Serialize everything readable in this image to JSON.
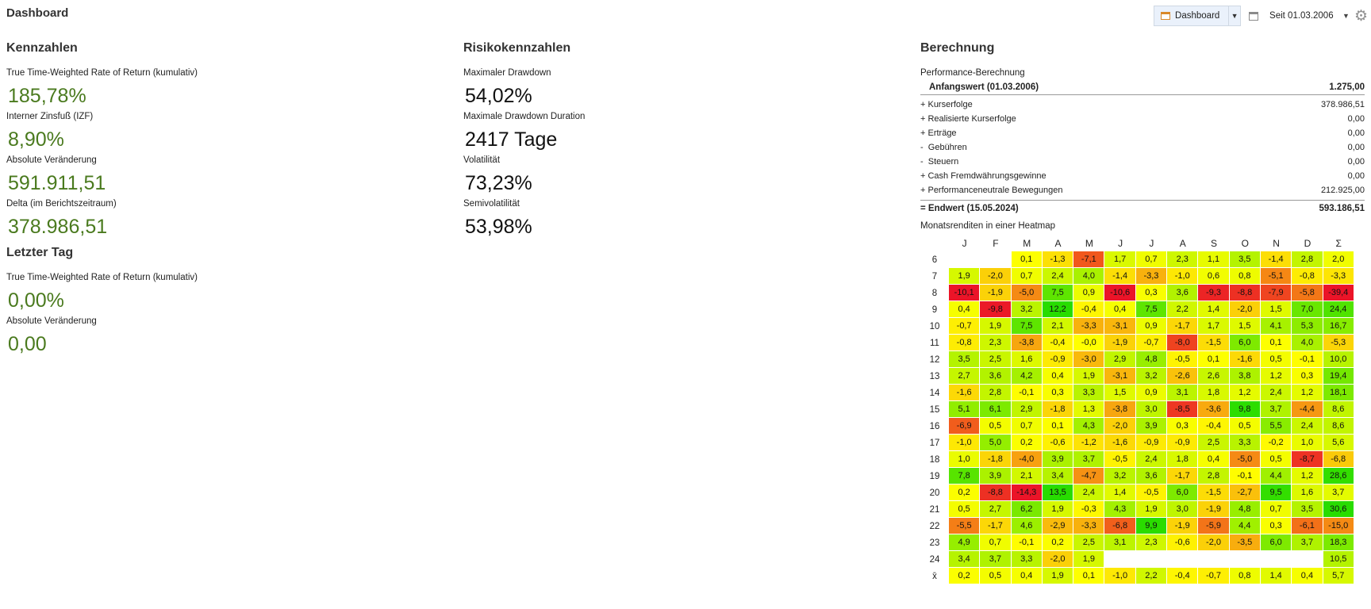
{
  "page_title": "Dashboard",
  "toolbar": {
    "dashboard_label": "Dashboard",
    "since_label": "Seit 01.03.2006"
  },
  "kennzahlen": {
    "title": "Kennzahlen",
    "items": [
      {
        "label": "True Time-Weighted Rate of Return (kumulativ)",
        "value": "185,78%"
      },
      {
        "label": "Interner Zinsfuß (IZF)",
        "value": "8,90%"
      },
      {
        "label": "Absolute Veränderung",
        "value": "591.911,51"
      },
      {
        "label": "Delta (im Berichtszeitraum)",
        "value": "378.986,51"
      }
    ]
  },
  "letzter_tag": {
    "title": "Letzter Tag",
    "items": [
      {
        "label": "True Time-Weighted Rate of Return (kumulativ)",
        "value": "0,00%"
      },
      {
        "label": "Absolute Veränderung",
        "value": "0,00"
      }
    ]
  },
  "risiko": {
    "title": "Risikokennzahlen",
    "items": [
      {
        "label": "Maximaler Drawdown",
        "value": "54,02%"
      },
      {
        "label": "Maximale Drawdown Duration",
        "value": "2417 Tage"
      },
      {
        "label": "Volatilität",
        "value": "73,23%"
      },
      {
        "label": "Semivolatilität",
        "value": "53,98%"
      }
    ]
  },
  "berechnung": {
    "title": "Berechnung",
    "subtitle": "Performance-Berechnung",
    "start": {
      "label": "Anfangswert (01.03.2006)",
      "value": "1.275,00"
    },
    "rows": [
      {
        "label": "+ Kurserfolge",
        "value": "378.986,51"
      },
      {
        "label": "+ Realisierte Kurserfolge",
        "value": "0,00"
      },
      {
        "label": "+ Erträge",
        "value": "0,00"
      },
      {
        "label": "-  Gebühren",
        "value": "0,00"
      },
      {
        "label": "-  Steuern",
        "value": "0,00"
      },
      {
        "label": "+ Cash Fremdwährungsgewinne",
        "value": "0,00"
      },
      {
        "label": "+ Performanceneutrale Bewegungen",
        "value": "212.925,00"
      }
    ],
    "end": {
      "label": "= Endwert (15.05.2024)",
      "value": "593.186,51"
    },
    "heatmap_title": "Monatsrenditen in einer Heatmap"
  },
  "heatmap": {
    "columns": [
      "J",
      "F",
      "M",
      "A",
      "M",
      "J",
      "J",
      "A",
      "S",
      "O",
      "N",
      "D",
      "Σ"
    ],
    "rows": [
      {
        "year": "6",
        "values": [
          "",
          "",
          "0,1",
          "-1,3",
          "-7,1",
          "1,7",
          "0,7",
          "2,3",
          "1,1",
          "3,5",
          "-1,4",
          "2,8",
          "2,0"
        ]
      },
      {
        "year": "7",
        "values": [
          "1,9",
          "-2,0",
          "0,7",
          "2,4",
          "4,0",
          "-1,4",
          "-3,3",
          "-1,0",
          "0,6",
          "0,8",
          "-5,1",
          "-0,8",
          "-3,3"
        ]
      },
      {
        "year": "8",
        "values": [
          "-10,1",
          "-1,9",
          "-5,0",
          "7,5",
          "0,9",
          "-10,6",
          "0,3",
          "3,6",
          "-9,3",
          "-8,8",
          "-7,9",
          "-5,8",
          "-39,4"
        ]
      },
      {
        "year": "9",
        "values": [
          "0,4",
          "-9,8",
          "3,2",
          "12,2",
          "-0,4",
          "0,4",
          "7,5",
          "2,2",
          "1,4",
          "-2,0",
          "1,5",
          "7,0",
          "24,4"
        ]
      },
      {
        "year": "10",
        "values": [
          "-0,7",
          "1,9",
          "7,5",
          "2,1",
          "-3,3",
          "-3,1",
          "0,9",
          "-1,7",
          "1,7",
          "1,5",
          "4,1",
          "5,3",
          "16,7"
        ]
      },
      {
        "year": "11",
        "values": [
          "-0,8",
          "2,3",
          "-3,8",
          "-0,4",
          "-0,0",
          "-1,9",
          "-0,7",
          "-8,0",
          "-1,5",
          "6,0",
          "0,1",
          "4,0",
          "-5,3"
        ]
      },
      {
        "year": "12",
        "values": [
          "3,5",
          "2,5",
          "1,6",
          "-0,9",
          "-3,0",
          "2,9",
          "4,8",
          "-0,5",
          "0,1",
          "-1,6",
          "0,5",
          "-0,1",
          "10,0"
        ]
      },
      {
        "year": "13",
        "values": [
          "2,7",
          "3,6",
          "4,2",
          "0,4",
          "1,9",
          "-3,1",
          "3,2",
          "-2,6",
          "2,6",
          "3,8",
          "1,2",
          "0,3",
          "19,4"
        ]
      },
      {
        "year": "14",
        "values": [
          "-1,6",
          "2,8",
          "-0,1",
          "0,3",
          "3,3",
          "1,5",
          "0,9",
          "3,1",
          "1,8",
          "1,2",
          "2,4",
          "1,2",
          "18,1"
        ]
      },
      {
        "year": "15",
        "values": [
          "5,1",
          "6,1",
          "2,9",
          "-1,8",
          "1,3",
          "-3,8",
          "3,0",
          "-8,5",
          "-3,6",
          "9,8",
          "3,7",
          "-4,4",
          "8,6"
        ]
      },
      {
        "year": "16",
        "values": [
          "-6,9",
          "0,5",
          "0,7",
          "0,1",
          "4,3",
          "-2,0",
          "3,9",
          "0,3",
          "-0,4",
          "0,5",
          "5,5",
          "2,4",
          "8,6"
        ]
      },
      {
        "year": "17",
        "values": [
          "-1,0",
          "5,0",
          "0,2",
          "-0,6",
          "-1,2",
          "-1,6",
          "-0,9",
          "-0,9",
          "2,5",
          "3,3",
          "-0,2",
          "1,0",
          "5,6"
        ]
      },
      {
        "year": "18",
        "values": [
          "1,0",
          "-1,8",
          "-4,0",
          "3,9",
          "3,7",
          "-0,5",
          "2,4",
          "1,8",
          "0,4",
          "-5,0",
          "0,5",
          "-8,7",
          "-6,8"
        ]
      },
      {
        "year": "19",
        "values": [
          "7,8",
          "3,9",
          "2,1",
          "3,4",
          "-4,7",
          "3,2",
          "3,6",
          "-1,7",
          "2,8",
          "-0,1",
          "4,4",
          "1,2",
          "28,6"
        ]
      },
      {
        "year": "20",
        "values": [
          "0,2",
          "-8,8",
          "-14,3",
          "13,5",
          "2,4",
          "1,4",
          "-0,5",
          "6,0",
          "-1,5",
          "-2,7",
          "9,5",
          "1,6",
          "3,7"
        ]
      },
      {
        "year": "21",
        "values": [
          "0,5",
          "2,7",
          "6,2",
          "1,9",
          "-0,3",
          "4,3",
          "1,9",
          "3,0",
          "-1,9",
          "4,8",
          "0,7",
          "3,5",
          "30,6"
        ]
      },
      {
        "year": "22",
        "values": [
          "-5,5",
          "-1,7",
          "4,6",
          "-2,9",
          "-3,3",
          "-6,8",
          "9,9",
          "-1,9",
          "-5,9",
          "4,4",
          "0,3",
          "-6,1",
          "-15,0"
        ]
      },
      {
        "year": "23",
        "values": [
          "4,9",
          "0,7",
          "-0,1",
          "0,2",
          "2,5",
          "3,1",
          "2,3",
          "-0,6",
          "-2,0",
          "-3,5",
          "6,0",
          "3,7",
          "18,3"
        ]
      },
      {
        "year": "24",
        "values": [
          "3,4",
          "3,7",
          "3,3",
          "-2,0",
          "1,9",
          "",
          "",
          "",
          "",
          "",
          "",
          "",
          "10,5"
        ]
      },
      {
        "year": "x̄",
        "values": [
          "0,2",
          "0,5",
          "0,4",
          "1,9",
          "0,1",
          "-1,0",
          "2,2",
          "-0,4",
          "-0,7",
          "0,8",
          "1,4",
          "0,4",
          "5,7"
        ]
      }
    ]
  }
}
